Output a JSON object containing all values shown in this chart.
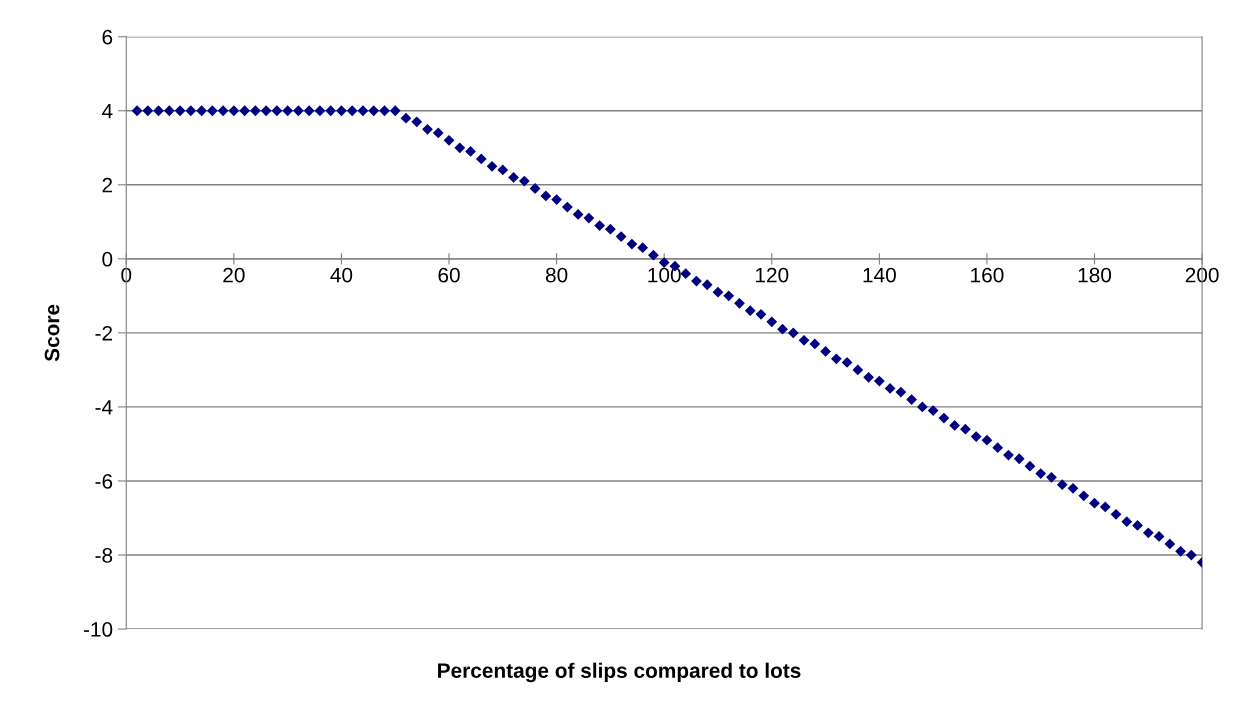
{
  "chart_data": {
    "type": "scatter",
    "xlabel": "Percentage of slips compared to lots",
    "ylabel": "Score",
    "x": [
      2,
      4,
      6,
      8,
      10,
      12,
      14,
      16,
      18,
      20,
      22,
      24,
      26,
      28,
      30,
      32,
      34,
      36,
      38,
      40,
      42,
      44,
      46,
      48,
      50,
      52,
      54,
      56,
      58,
      60,
      62,
      64,
      66,
      68,
      70,
      72,
      74,
      76,
      78,
      80,
      82,
      84,
      86,
      88,
      90,
      92,
      94,
      96,
      98,
      100,
      102,
      104,
      106,
      108,
      110,
      112,
      114,
      116,
      118,
      120,
      122,
      124,
      126,
      128,
      130,
      132,
      134,
      136,
      138,
      140,
      142,
      144,
      146,
      148,
      150,
      152,
      154,
      156,
      158,
      160,
      162,
      164,
      166,
      168,
      170,
      172,
      174,
      176,
      178,
      180,
      182,
      184,
      186,
      188,
      190,
      192,
      194,
      196,
      198,
      200
    ],
    "series": [
      {
        "color": "#000080",
        "values": [
          4,
          4,
          4,
          4,
          4,
          4,
          4,
          4,
          4,
          4,
          4,
          4,
          4,
          4,
          4,
          4,
          4,
          4,
          4,
          4,
          4,
          4,
          4,
          4,
          4,
          3.8,
          3.7,
          3.5,
          3.4,
          3.2,
          3.0,
          2.9,
          2.7,
          2.5,
          2.4,
          2.2,
          2.1,
          1.9,
          1.7,
          1.6,
          1.4,
          1.2,
          1.1,
          0.9,
          0.8,
          0.6,
          0.4,
          0.3,
          0.1,
          -0.1,
          -0.2,
          -0.4,
          -0.6,
          -0.7,
          -0.9,
          -1.0,
          -1.2,
          -1.4,
          -1.5,
          -1.7,
          -1.9,
          -2.0,
          -2.2,
          -2.3,
          -2.5,
          -2.7,
          -2.8,
          -3.0,
          -3.2,
          -3.3,
          -3.5,
          -3.6,
          -3.8,
          -4.0,
          -4.1,
          -4.3,
          -4.5,
          -4.6,
          -4.8,
          -4.9,
          -5.1,
          -5.3,
          -5.4,
          -5.6,
          -5.8,
          -5.9,
          -6.1,
          -6.2,
          -6.4,
          -6.6,
          -6.7,
          -6.9,
          -7.1,
          -7.2,
          -7.4,
          -7.5,
          -7.7,
          -7.9,
          -8.0,
          -8.2
        ]
      }
    ],
    "xlim": [
      0,
      200
    ],
    "xticks": [
      0,
      20,
      40,
      60,
      80,
      100,
      120,
      140,
      160,
      180,
      200
    ],
    "ylim": [
      -10,
      6
    ],
    "yticks": [
      -10,
      -8,
      -6,
      -4,
      -2,
      0,
      2,
      4,
      6
    ],
    "grid": "y",
    "marker": "diamond",
    "legend": false
  }
}
